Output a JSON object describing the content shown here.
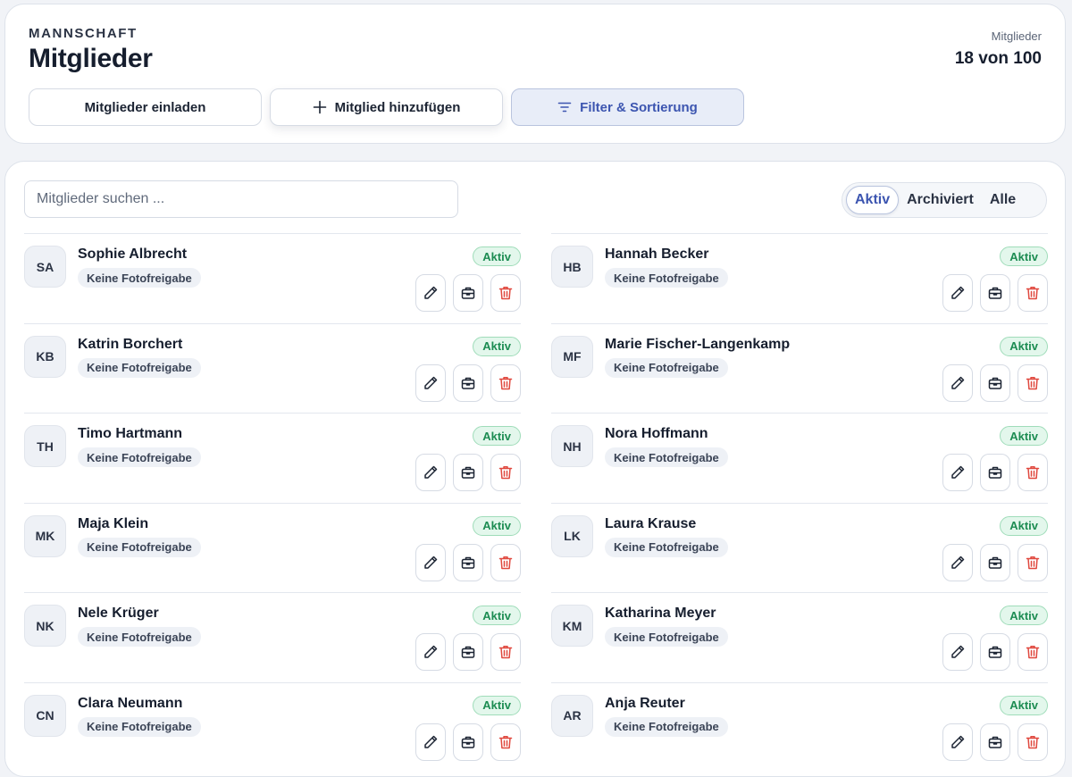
{
  "header": {
    "kicker": "MANNSCHAFT",
    "title": "Mitglieder",
    "count_label": "Mitglieder",
    "count_value": "18 von 100"
  },
  "actions": {
    "invite_label": "Mitglieder einladen",
    "add_label": "Mitglied hinzufügen",
    "filter_label": "Filter & Sortierung"
  },
  "search": {
    "placeholder": "Mitglieder suchen ...",
    "value": ""
  },
  "status_filter": {
    "options": [
      "Aktiv",
      "Archiviert",
      "Alle"
    ],
    "selected": "Aktiv"
  },
  "members": [
    {
      "initials": "SA",
      "name": "Sophie Albrecht",
      "tag": "Keine Fotofreigabe",
      "status": "Aktiv"
    },
    {
      "initials": "HB",
      "name": "Hannah Becker",
      "tag": "Keine Fotofreigabe",
      "status": "Aktiv"
    },
    {
      "initials": "KB",
      "name": "Katrin Borchert",
      "tag": "Keine Fotofreigabe",
      "status": "Aktiv"
    },
    {
      "initials": "MF",
      "name": "Marie Fischer-Langenkamp",
      "tag": "Keine Fotofreigabe",
      "status": "Aktiv"
    },
    {
      "initials": "TH",
      "name": "Timo Hartmann",
      "tag": "Keine Fotofreigabe",
      "status": "Aktiv"
    },
    {
      "initials": "NH",
      "name": "Nora Hoffmann",
      "tag": "Keine Fotofreigabe",
      "status": "Aktiv"
    },
    {
      "initials": "MK",
      "name": "Maja Klein",
      "tag": "Keine Fotofreigabe",
      "status": "Aktiv"
    },
    {
      "initials": "LK",
      "name": "Laura Krause",
      "tag": "Keine Fotofreigabe",
      "status": "Aktiv"
    },
    {
      "initials": "NK",
      "name": "Nele Krüger",
      "tag": "Keine Fotofreigabe",
      "status": "Aktiv"
    },
    {
      "initials": "KM",
      "name": "Katharina Meyer",
      "tag": "Keine Fotofreigabe",
      "status": "Aktiv"
    },
    {
      "initials": "CN",
      "name": "Clara Neumann",
      "tag": "Keine Fotofreigabe",
      "status": "Aktiv"
    },
    {
      "initials": "AR",
      "name": "Anja Reuter",
      "tag": "Keine Fotofreigabe",
      "status": "Aktiv"
    }
  ],
  "icons": {
    "plus": "plus-icon",
    "filter": "filter-icon",
    "edit": "pencil-icon",
    "archive": "archive-box-icon",
    "delete": "trash-icon"
  },
  "colors": {
    "accent": "#3c55b0",
    "status_active_bg": "#e3f7ec",
    "status_active_text": "#1c8c52",
    "delete": "#e0483e"
  }
}
